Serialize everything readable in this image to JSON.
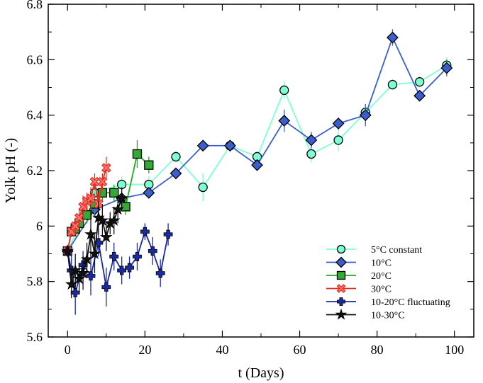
{
  "chart_data": {
    "type": "line",
    "xlabel": "t (Days)",
    "ylabel": "Yolk pH (-)",
    "xlim": [
      -5,
      105
    ],
    "ylim": [
      5.6,
      6.8
    ],
    "xticks": [
      0,
      20,
      40,
      60,
      80,
      100
    ],
    "yticks": [
      5.6,
      5.8,
      6,
      6.2,
      6.4,
      6.6,
      6.8
    ],
    "ytick_labels": [
      "5.6",
      "5.8",
      "6",
      "6.2",
      "6.4",
      "6.6",
      "6.8"
    ],
    "grid": false,
    "legend_position": "bottom-right",
    "series": [
      {
        "name": "5°C constant",
        "color": "#7fffd4",
        "marker": "circle",
        "marker_fill": "#7fffd4",
        "x": [
          0,
          7,
          14,
          21,
          28,
          35,
          42,
          49,
          56,
          63,
          70,
          77,
          84,
          91,
          98
        ],
        "y": [
          5.91,
          6.12,
          6.15,
          6.15,
          6.25,
          6.14,
          6.29,
          6.25,
          6.49,
          6.26,
          6.31,
          6.41,
          6.51,
          6.52,
          6.58
        ],
        "err": [
          0.01,
          0.02,
          0.03,
          0.03,
          0.02,
          0.05,
          0.02,
          0.02,
          0.03,
          0.03,
          0.04,
          0.03,
          0.02,
          0.02,
          0.03
        ]
      },
      {
        "name": "10°C",
        "color": "#3a5fcd",
        "marker": "diamond",
        "marker_fill": "#3a5fcd",
        "x": [
          0,
          7,
          14,
          21,
          28,
          35,
          42,
          49,
          56,
          63,
          70,
          77,
          84,
          91,
          98
        ],
        "y": [
          5.91,
          6.06,
          6.1,
          6.12,
          6.19,
          6.29,
          6.29,
          6.22,
          6.38,
          6.31,
          6.37,
          6.4,
          6.68,
          6.47,
          6.57
        ],
        "err": [
          0.01,
          0.03,
          0.02,
          0.02,
          0.02,
          0.02,
          0.02,
          0.02,
          0.04,
          0.03,
          0.02,
          0.04,
          0.03,
          0.02,
          0.03
        ]
      },
      {
        "name": "20°C",
        "color": "#22aa22",
        "marker": "square",
        "marker_fill": "#33aa33",
        "x": [
          0,
          1,
          2,
          3,
          5,
          7,
          9,
          12,
          15,
          18,
          21
        ],
        "y": [
          5.91,
          5.98,
          5.99,
          6.01,
          6.04,
          6.08,
          6.12,
          6.12,
          6.07,
          6.26,
          6.22
        ],
        "err": [
          0.01,
          0.02,
          0.02,
          0.03,
          0.03,
          0.04,
          0.03,
          0.03,
          0.03,
          0.05,
          0.03
        ]
      },
      {
        "name": "30°C",
        "color": "#e03020",
        "marker": "cross",
        "marker_fill": "#ff7070",
        "x": [
          0,
          1,
          2,
          3,
          4,
          5,
          6,
          7,
          8,
          9,
          10
        ],
        "y": [
          5.91,
          5.98,
          6.0,
          6.03,
          6.07,
          6.09,
          6.1,
          6.16,
          6.08,
          6.16,
          6.21
        ],
        "err": [
          0.01,
          0.02,
          0.03,
          0.03,
          0.04,
          0.03,
          0.04,
          0.03,
          0.04,
          0.03,
          0.04
        ]
      },
      {
        "name": "10-20°C fluctuating",
        "color": "#1a2aa0",
        "marker": "plus",
        "marker_fill": "#1a2aa0",
        "x": [
          0,
          1,
          2,
          4,
          6,
          8,
          10,
          12,
          14,
          16,
          18,
          20,
          22,
          24,
          26
        ],
        "y": [
          5.91,
          5.84,
          5.76,
          5.86,
          5.82,
          5.94,
          5.78,
          5.89,
          5.84,
          5.85,
          5.89,
          5.98,
          5.91,
          5.83,
          5.97
        ],
        "err": [
          0.02,
          0.06,
          0.08,
          0.05,
          0.07,
          0.05,
          0.07,
          0.05,
          0.05,
          0.04,
          0.05,
          0.03,
          0.05,
          0.05,
          0.04
        ]
      },
      {
        "name": "10-30°C",
        "color": "#111111",
        "marker": "star",
        "marker_fill": "#111111",
        "x": [
          0,
          1,
          2,
          3,
          4,
          5,
          6,
          7,
          8,
          9,
          10,
          11,
          12,
          13,
          14
        ],
        "y": [
          5.91,
          5.79,
          5.84,
          5.81,
          5.83,
          5.88,
          5.97,
          5.9,
          6.03,
          6.02,
          5.96,
          6.01,
          6.02,
          6.06,
          6.1
        ],
        "err": [
          0.02,
          0.05,
          0.06,
          0.05,
          0.06,
          0.06,
          0.08,
          0.07,
          0.06,
          0.06,
          0.05,
          0.04,
          0.05,
          0.05,
          0.04
        ]
      }
    ]
  }
}
